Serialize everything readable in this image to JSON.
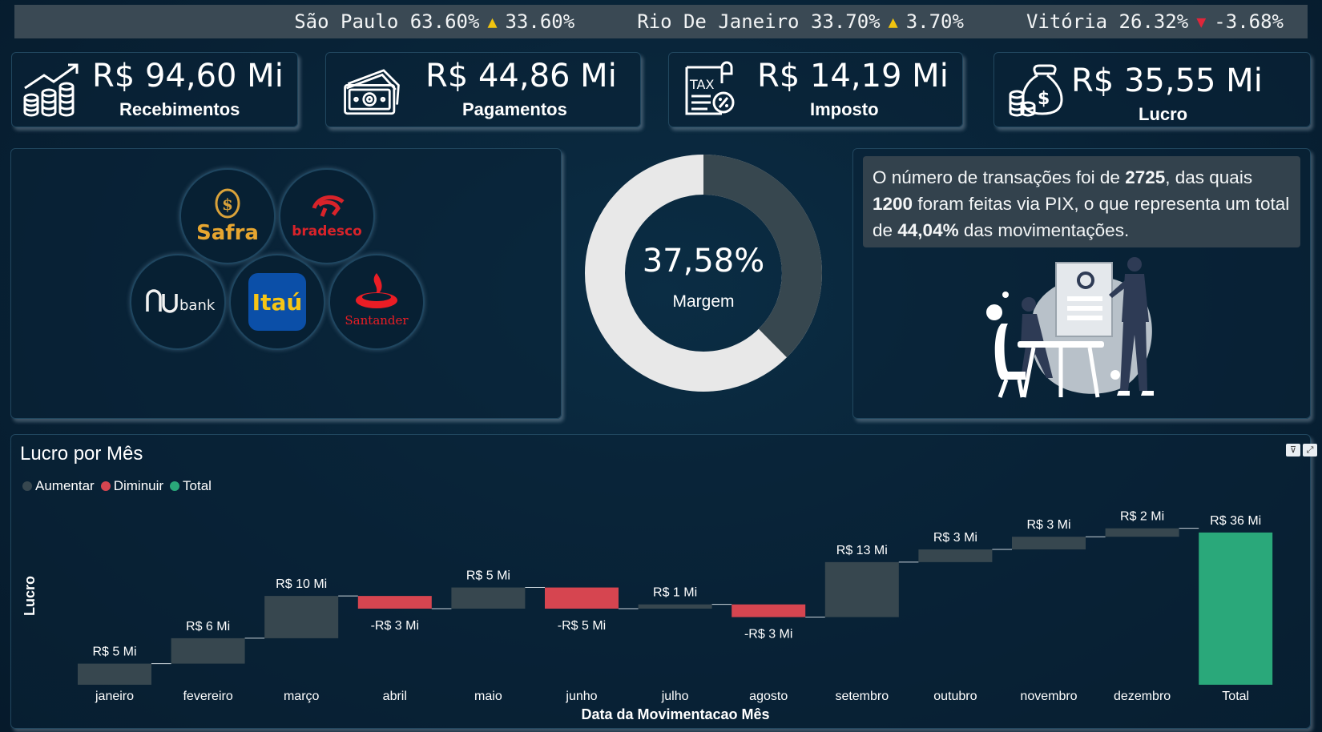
{
  "ticker": [
    {
      "city": "São Paulo",
      "value": "63.60%",
      "dir": "up",
      "delta": "33.60%"
    },
    {
      "city": "Rio De Janeiro",
      "value": "33.70%",
      "dir": "up",
      "delta": "3.70%"
    },
    {
      "city": "Vitória",
      "value": "26.32%",
      "dir": "down",
      "delta": "-3.68%"
    }
  ],
  "kpis": {
    "recebimentos": {
      "value": "R$ 94,60 Mi",
      "label": "Recebimentos"
    },
    "pagamentos": {
      "value": "R$ 44,86 Mi",
      "label": "Pagamentos"
    },
    "imposto": {
      "value": "R$ 14,19 Mi",
      "label": "Imposto",
      "icon_text": "TAX"
    },
    "lucro": {
      "value": "R$ 35,55 Mi",
      "label": "Lucro"
    }
  },
  "banks": {
    "safra": "Safra",
    "bradesco": "bradesco",
    "nubank": "bank",
    "itau": "Itaú",
    "santander": "Santander"
  },
  "margin": {
    "value": "37,58%",
    "fraction": 0.3758,
    "label": "Margem"
  },
  "info": {
    "t1": "O número de transações foi de ",
    "b1": "2725",
    "t2": ", das quais ",
    "b2": "1200",
    "t3": " foram feitas via PIX, o que representa um total de ",
    "b3": "44,04%",
    "t4": " das movimentações."
  },
  "colors": {
    "increase": "#37474f",
    "decrease": "#d64550",
    "total": "#2aa87a",
    "donut_light": "#e8e8e8",
    "donut_dark": "#37474f"
  },
  "chart_data": {
    "type": "waterfall",
    "title": "Lucro por Mês",
    "xlabel": "Data da Movimentacao Mês",
    "ylabel": "Lucro",
    "legend": [
      "Aumentar",
      "Diminuir",
      "Total"
    ],
    "categories": [
      "janeiro",
      "fevereiro",
      "março",
      "abril",
      "maio",
      "junho",
      "julho",
      "agosto",
      "setembro",
      "outubro",
      "novembro",
      "dezembro",
      "Total"
    ],
    "values": [
      5,
      6,
      10,
      -3,
      5,
      -5,
      1,
      -3,
      13,
      3,
      3,
      2,
      36
    ],
    "labels": [
      "R$ 5 Mi",
      "R$ 6 Mi",
      "R$ 10 Mi",
      "-R$ 3 Mi",
      "R$ 5 Mi",
      "-R$ 5 Mi",
      "R$ 1 Mi",
      "-R$ 3 Mi",
      "R$ 13 Mi",
      "R$ 3 Mi",
      "R$ 3 Mi",
      "R$ 2 Mi",
      "R$ 36 Mi"
    ],
    "ylim": [
      0,
      40
    ]
  }
}
